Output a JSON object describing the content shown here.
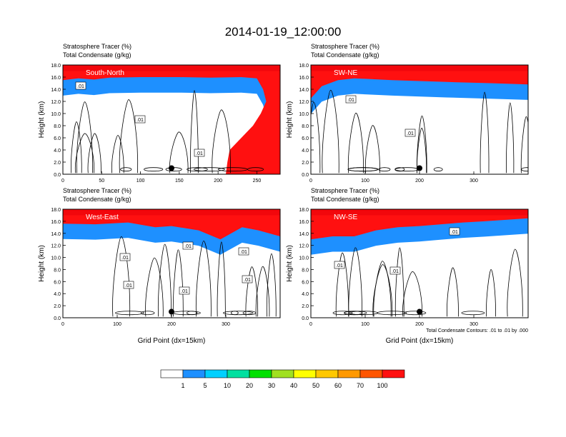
{
  "title": "2014-01-19_12:00:00",
  "colors": {
    "levels": [
      "#ffffff",
      "#1e90ff",
      "#00d0ff",
      "#00e0a0",
      "#00e000",
      "#a0e020",
      "#ffff00",
      "#ffc800",
      "#ff9900",
      "#ff5500",
      "#ff1010"
    ],
    "contour": "#000000"
  },
  "chart_data": [
    {
      "type": "heatmap",
      "label_top": "Stratosphere Tracer   (%)",
      "label_bottom": "Total Condensate   (g/kg)",
      "panel_label": "South-North",
      "ylabel": "Height (km)",
      "xlabel": "",
      "xlim": [
        0,
        280
      ],
      "ylim": [
        0,
        18
      ],
      "xticks": [
        "0",
        "50",
        "100",
        "150",
        "200",
        "250"
      ],
      "xtick_values": [
        0,
        50,
        100,
        150,
        200,
        250
      ],
      "yticks": [
        "0.0",
        "2.0",
        "4.0",
        "6.0",
        "8.0",
        "10.0",
        "12.0",
        "14.0",
        "16.0",
        "18.0"
      ],
      "tropopause_km": [
        [
          0,
          15.5
        ],
        [
          20,
          15.8
        ],
        [
          40,
          15.6
        ],
        [
          60,
          15.9
        ],
        [
          100,
          16.0
        ],
        [
          150,
          16.0
        ],
        [
          190,
          15.9
        ],
        [
          230,
          16.0
        ],
        [
          250,
          15.8
        ],
        [
          258,
          14.0
        ],
        [
          262,
          12.0
        ],
        [
          255,
          10.0
        ],
        [
          245,
          8.0
        ],
        [
          230,
          6.0
        ],
        [
          215,
          4.0
        ],
        [
          212,
          2.0
        ],
        [
          210,
          0.0
        ]
      ],
      "contour_labels": [
        ".01",
        ".01",
        ".01"
      ],
      "marker_x": 140,
      "marker_y_km": 1.0
    },
    {
      "type": "heatmap",
      "label_top": "Stratosphere Tracer   (%)",
      "label_bottom": "Total Condensate   (g/kg)",
      "panel_label": "SW-NE",
      "ylabel": "Height (km)",
      "xlabel": "",
      "xlim": [
        0,
        400
      ],
      "ylim": [
        0,
        18
      ],
      "xticks": [
        "0",
        "100",
        "200",
        "300"
      ],
      "xtick_values": [
        0,
        100,
        200,
        300
      ],
      "yticks": [
        "0.0",
        "2.0",
        "4.0",
        "6.0",
        "8.0",
        "10.0",
        "12.0",
        "14.0",
        "16.0",
        "18.0"
      ],
      "tropopause_km": [
        [
          0,
          12.5
        ],
        [
          20,
          14.5
        ],
        [
          50,
          15.5
        ],
        [
          80,
          15.8
        ],
        [
          150,
          15.5
        ],
        [
          250,
          15.2
        ],
        [
          330,
          15.0
        ],
        [
          400,
          14.8
        ]
      ],
      "contour_labels": [
        ".01",
        ".01"
      ],
      "marker_x": 200,
      "marker_y_km": 1.0
    },
    {
      "type": "heatmap",
      "label_top": "Stratosphere Tracer   (%)",
      "label_bottom": "Total Condensate   (g/kg)",
      "panel_label": "West-East",
      "ylabel": "Height (km)",
      "xlabel": "Grid Point (dx=15km)",
      "xlim": [
        0,
        400
      ],
      "ylim": [
        0,
        18
      ],
      "xticks": [
        "0",
        "100",
        "200",
        "300"
      ],
      "xtick_values": [
        0,
        100,
        200,
        300
      ],
      "yticks": [
        "0.0",
        "2.0",
        "4.0",
        "6.0",
        "8.0",
        "10.0",
        "12.0",
        "14.0",
        "16.0",
        "18.0"
      ],
      "tropopause_km": [
        [
          0,
          15.6
        ],
        [
          60,
          15.5
        ],
        [
          120,
          15.8
        ],
        [
          170,
          15.0
        ],
        [
          200,
          15.2
        ],
        [
          250,
          14.5
        ],
        [
          290,
          13.0
        ],
        [
          330,
          15.0
        ],
        [
          360,
          14.5
        ],
        [
          400,
          13.5
        ]
      ],
      "contour_labels": [
        ".01",
        ".01",
        ".01",
        ".01",
        ".01",
        ".01"
      ],
      "marker_x": 200,
      "marker_y_km": 1.0
    },
    {
      "type": "heatmap",
      "label_top": "Stratosphere Tracer   (%)",
      "label_bottom": "Total Condensate   (g/kg)",
      "panel_label": "NW-SE",
      "ylabel": "Height (km)",
      "xlabel": "Grid Point (dx=15km)",
      "xlim": [
        0,
        400
      ],
      "ylim": [
        0,
        18
      ],
      "xticks": [
        "0",
        "100",
        "200",
        "300"
      ],
      "xtick_values": [
        0,
        100,
        200,
        300
      ],
      "yticks": [
        "0.0",
        "2.0",
        "4.0",
        "6.0",
        "8.0",
        "10.0",
        "12.0",
        "14.0",
        "16.0",
        "18.0"
      ],
      "tropopause_km": [
        [
          0,
          13.0
        ],
        [
          40,
          13.5
        ],
        [
          80,
          13.5
        ],
        [
          120,
          14.5
        ],
        [
          160,
          15.0
        ],
        [
          200,
          15.2
        ],
        [
          240,
          15.5
        ],
        [
          280,
          15.8
        ],
        [
          320,
          16.0
        ],
        [
          400,
          16.5
        ]
      ],
      "contour_labels": [
        ".01",
        ".01",
        ".01"
      ],
      "marker_x": 200,
      "marker_y_km": 1.0,
      "contour_info": "Total Condensate Contours: .01 to .01 by .000"
    }
  ],
  "colorbar": {
    "labels": [
      "1",
      "5",
      "10",
      "20",
      "30",
      "40",
      "50",
      "60",
      "70",
      "100"
    ]
  }
}
